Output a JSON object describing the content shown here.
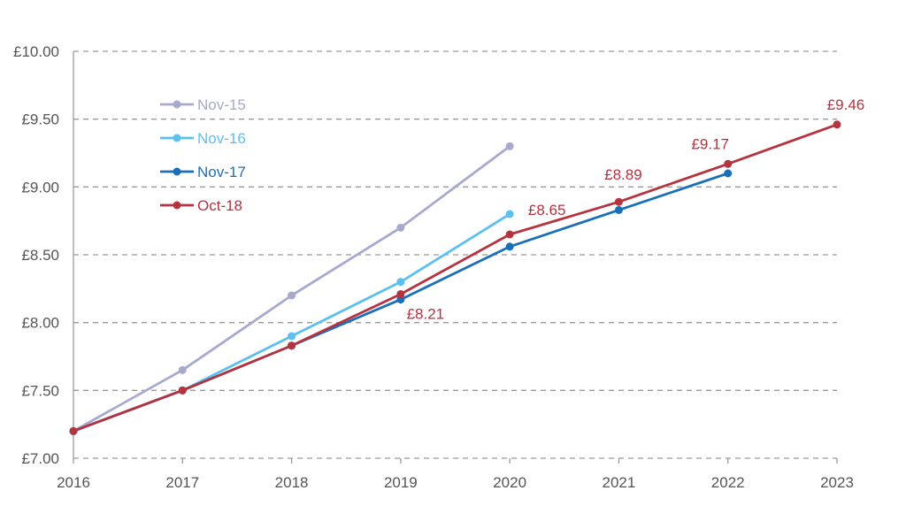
{
  "chart_data": {
    "type": "line",
    "title": "",
    "xlabel": "",
    "ylabel": "",
    "x": [
      "2016",
      "2017",
      "2018",
      "2019",
      "2020",
      "2021",
      "2022",
      "2023"
    ],
    "ylim": [
      7.0,
      10.0
    ],
    "yticks": [
      7.0,
      7.5,
      8.0,
      8.5,
      9.0,
      9.5,
      10.0
    ],
    "ytick_labels": [
      "£7.00",
      "£7.50",
      "£8.00",
      "£8.50",
      "£9.00",
      "£9.50",
      "£10.00"
    ],
    "grid": "horizontal dashed",
    "legend_position": "top-left",
    "series": [
      {
        "name": "Nov-15",
        "color": "#a7a9cf",
        "values": [
          7.2,
          7.65,
          8.2,
          8.7,
          9.3,
          null,
          null,
          null
        ]
      },
      {
        "name": "Nov-16",
        "color": "#5bc0f0",
        "values": [
          7.2,
          7.5,
          7.9,
          8.3,
          8.8,
          null,
          null,
          null
        ]
      },
      {
        "name": "Nov-17",
        "color": "#1a6fb8",
        "values": [
          7.2,
          7.5,
          7.83,
          8.17,
          8.56,
          8.83,
          9.1,
          null
        ]
      },
      {
        "name": "Oct-18",
        "color": "#b5323f",
        "values": [
          7.2,
          7.5,
          7.83,
          8.21,
          8.65,
          8.89,
          9.17,
          9.46
        ]
      }
    ],
    "annotations": [
      {
        "series": "Oct-18",
        "x": "2019",
        "text": "£8.21"
      },
      {
        "series": "Oct-18",
        "x": "2020",
        "text": "£8.65"
      },
      {
        "series": "Oct-18",
        "x": "2021",
        "text": "£8.89"
      },
      {
        "series": "Oct-18",
        "x": "2022",
        "text": "£9.17"
      },
      {
        "series": "Oct-18",
        "x": "2023",
        "text": "£9.46"
      }
    ]
  }
}
